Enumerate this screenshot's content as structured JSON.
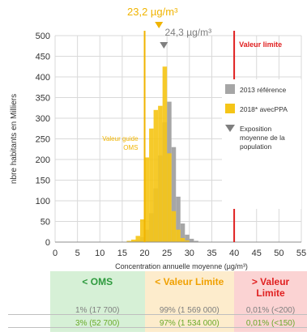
{
  "chart_data": {
    "type": "bar",
    "ylabel": "nbre habitants en Milliers",
    "xlabel": "Concentration annuelle moyenne (µg/m³)",
    "xlim": [
      0,
      55
    ],
    "ylim": [
      0,
      500
    ],
    "xticks": [
      "0",
      "5",
      "10",
      "15",
      "20",
      "25",
      "30",
      "35",
      "40",
      "45",
      "50",
      "55"
    ],
    "yticks": [
      "0",
      "50",
      "100",
      "150",
      "200",
      "250",
      "300",
      "350",
      "400",
      "450",
      "500"
    ],
    "grid": true,
    "bin_width": 1,
    "series": [
      {
        "name": "2013 référence",
        "color": "#a6a6a6",
        "x": [
          17,
          18,
          19,
          20,
          21,
          22,
          23,
          24,
          25,
          26,
          27,
          28,
          29,
          30,
          31
        ],
        "values": [
          2,
          5,
          12,
          30,
          70,
          130,
          210,
          290,
          340,
          230,
          110,
          45,
          18,
          8,
          3
        ]
      },
      {
        "name": "2018* avecPPA",
        "color": "#f5c518",
        "x": [
          16,
          17,
          18,
          19,
          20,
          21,
          22,
          23,
          24,
          25,
          26,
          27,
          28,
          29
        ],
        "values": [
          3,
          6,
          15,
          55,
          205,
          275,
          320,
          330,
          425,
          215,
          75,
          30,
          10,
          4
        ]
      }
    ],
    "legend": {
      "position": "right",
      "entries": [
        "2013 référence",
        "2018* avecPPA"
      ],
      "exposure_label": "Exposition moyenne de la population"
    },
    "annotations": {
      "mean_2018": {
        "label": "23,2 µg/m³",
        "x": 23.2,
        "color": "#f0b400"
      },
      "mean_2013": {
        "label": "24,3 µg/m³",
        "x": 24.3,
        "color": "#7f7f7f"
      },
      "oms_guide": {
        "label": "Valeur guide OMS",
        "x": 20,
        "color": "#f0b400"
      },
      "limit_value": {
        "label": "Valeur limite",
        "x": 40,
        "color": "#e02020"
      }
    },
    "zones": [
      {
        "label": "< OMS",
        "label_color": "#2e9a3e",
        "bg": "#d6f0d6",
        "x_from": 0,
        "x_to": 20,
        "row_2013": "1% (17 700)",
        "row_2018": "3% (52 700)"
      },
      {
        "label": "< Valeur Limite",
        "label_color": "#f0a000",
        "bg": "#fdeccc",
        "x_from": 20,
        "x_to": 40,
        "row_2013": "99% (1 569 000)",
        "row_2018": "97% (1 534 000)"
      },
      {
        "label": "> Valeur Limite",
        "label_color": "#e02020",
        "bg": "#fbd3d3",
        "x_from": 40,
        "x_to": 55,
        "row_2013": "0,01% (<200)",
        "row_2018": "0,01% (<150)"
      }
    ],
    "row_colors": {
      "row_2013": "#7f7f7f",
      "row_2018": "#6aaa2a"
    }
  }
}
